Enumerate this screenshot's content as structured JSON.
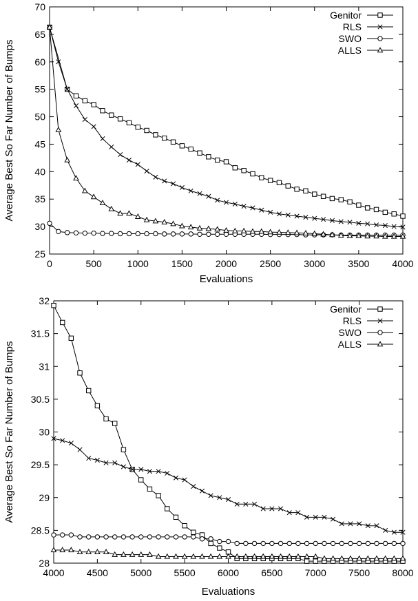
{
  "chart_data": [
    {
      "type": "line",
      "xlabel": "Evaluations",
      "ylabel": "Average Best So Far Number of Bumps",
      "xlim": [
        0,
        4000
      ],
      "ylim": [
        25,
        70
      ],
      "xticks": [
        0,
        500,
        1000,
        1500,
        2000,
        2500,
        3000,
        3500,
        4000
      ],
      "yticks": [
        25,
        30,
        35,
        40,
        45,
        50,
        55,
        60,
        65,
        70
      ],
      "xtick_labels": [
        "0",
        "500",
        "1000",
        "1500",
        "2000",
        "2500",
        "3000",
        "3500",
        "4000"
      ],
      "ytick_labels": [
        "25",
        "30",
        "35",
        "40",
        "45",
        "50",
        "55",
        "60",
        "65",
        "70"
      ],
      "grid": false,
      "legend": "top-right",
      "series": [
        {
          "name": "Genitor",
          "marker": "square",
          "x": [
            0,
            200,
            300,
            400,
            500,
            600,
            700,
            800,
            900,
            1000,
            1100,
            1200,
            1300,
            1400,
            1500,
            1600,
            1700,
            1800,
            1900,
            2000,
            2100,
            2200,
            2300,
            2400,
            2500,
            2600,
            2700,
            2800,
            2900,
            3000,
            3100,
            3200,
            3300,
            3400,
            3500,
            3600,
            3700,
            3800,
            3900,
            4000
          ],
          "y": [
            66.3,
            55,
            53.8,
            52.9,
            52.2,
            51.1,
            50.3,
            49.6,
            48.9,
            48.1,
            47.5,
            46.7,
            46.1,
            45.4,
            44.7,
            44.1,
            43.4,
            42.7,
            42.1,
            41.8,
            40.7,
            40.2,
            39.6,
            38.9,
            38.4,
            38.0,
            37.4,
            36.8,
            36.5,
            35.9,
            35.5,
            35.1,
            34.9,
            34.5,
            33.9,
            33.4,
            33.1,
            32.6,
            32.3,
            31.9
          ]
        },
        {
          "name": "RLS",
          "marker": "cross",
          "x": [
            0,
            100,
            200,
            300,
            400,
            500,
            600,
            700,
            800,
            900,
            1000,
            1100,
            1200,
            1300,
            1400,
            1500,
            1600,
            1700,
            1800,
            1900,
            2000,
            2100,
            2200,
            2300,
            2400,
            2500,
            2600,
            2700,
            2800,
            2900,
            3000,
            3100,
            3200,
            3300,
            3400,
            3500,
            3600,
            3700,
            3800,
            3900,
            4000
          ],
          "y": [
            66.3,
            60.0,
            55.0,
            52.0,
            49.5,
            48.2,
            46.0,
            44.5,
            43.1,
            42.1,
            41.3,
            40.1,
            39.0,
            38.3,
            37.8,
            37.1,
            36.5,
            36.0,
            35.5,
            34.8,
            34.4,
            34.1,
            33.7,
            33.4,
            33.0,
            32.6,
            32.3,
            32.1,
            31.9,
            31.7,
            31.5,
            31.3,
            31.1,
            30.9,
            30.8,
            30.6,
            30.5,
            30.3,
            30.2,
            30.0,
            29.9
          ]
        },
        {
          "name": "SWO",
          "marker": "circle",
          "x": [
            0,
            100,
            200,
            300,
            400,
            500,
            600,
            700,
            800,
            900,
            1000,
            1100,
            1200,
            1300,
            1400,
            1500,
            1600,
            1700,
            1800,
            1900,
            2000,
            2100,
            2200,
            2300,
            2400,
            2500,
            2600,
            2700,
            2800,
            2900,
            3000,
            3100,
            3200,
            3300,
            3400,
            3500,
            3600,
            3700,
            3800,
            3900,
            4000
          ],
          "y": [
            30.6,
            29.1,
            28.9,
            28.85,
            28.8,
            28.8,
            28.75,
            28.75,
            28.7,
            28.7,
            28.7,
            28.7,
            28.7,
            28.65,
            28.65,
            28.65,
            28.65,
            28.6,
            28.6,
            28.6,
            28.6,
            28.6,
            28.6,
            28.6,
            28.6,
            28.55,
            28.55,
            28.55,
            28.55,
            28.5,
            28.5,
            28.5,
            28.5,
            28.45,
            28.45,
            28.45,
            28.45,
            28.45,
            28.45,
            28.45,
            28.45
          ]
        },
        {
          "name": "ALLS",
          "marker": "triangle",
          "x": [
            0,
            100,
            200,
            300,
            400,
            500,
            600,
            700,
            800,
            900,
            1000,
            1100,
            1200,
            1300,
            1400,
            1500,
            1600,
            1700,
            1800,
            1900,
            2000,
            2100,
            2200,
            2300,
            2400,
            2500,
            2600,
            2700,
            2800,
            2900,
            3000,
            3100,
            3200,
            3300,
            3400,
            3500,
            3600,
            3700,
            3800,
            3900,
            4000
          ],
          "y": [
            66.3,
            47.6,
            42.1,
            38.8,
            36.5,
            35.4,
            34.3,
            33.2,
            32.4,
            32.4,
            31.8,
            31.2,
            31.0,
            30.8,
            30.5,
            30.1,
            29.9,
            29.7,
            29.6,
            29.5,
            29.3,
            29.2,
            29.2,
            29.1,
            29.1,
            29.0,
            28.95,
            28.9,
            28.85,
            28.8,
            28.7,
            28.6,
            28.5,
            28.4,
            28.3,
            28.3,
            28.25,
            28.25,
            28.2,
            28.2,
            28.2
          ]
        }
      ]
    },
    {
      "type": "line",
      "xlabel": "Evaluations",
      "ylabel": "Average Best So Far Number of Bumps",
      "xlim": [
        4000,
        8000
      ],
      "ylim": [
        28,
        32
      ],
      "xticks": [
        4000,
        4500,
        5000,
        5500,
        6000,
        6500,
        7000,
        7500,
        8000
      ],
      "yticks": [
        28,
        28.5,
        29,
        29.5,
        30,
        30.5,
        31,
        31.5,
        32
      ],
      "xtick_labels": [
        "4000",
        "4500",
        "5000",
        "5500",
        "6000",
        "6500",
        "7000",
        "7500",
        "8000"
      ],
      "ytick_labels": [
        "28",
        "28.5",
        "29",
        "29.5",
        "30",
        "30.5",
        "31",
        "31.5",
        "32"
      ],
      "grid": false,
      "legend": "top-right",
      "series": [
        {
          "name": "Genitor",
          "marker": "square",
          "x": [
            4000,
            4100,
            4200,
            4300,
            4400,
            4500,
            4600,
            4700,
            4800,
            4900,
            5000,
            5100,
            5200,
            5300,
            5400,
            5500,
            5600,
            5700,
            5800,
            5900,
            6000,
            6100,
            6200,
            6300,
            6400,
            6500,
            6600,
            6700,
            6800,
            6900,
            7000,
            7100,
            7200,
            7300,
            7400,
            7500,
            7600,
            7700,
            7800,
            7900,
            8000
          ],
          "y": [
            31.93,
            31.67,
            31.43,
            30.9,
            30.63,
            30.4,
            30.2,
            30.13,
            29.73,
            29.43,
            29.27,
            29.13,
            29.03,
            28.83,
            28.7,
            28.57,
            28.47,
            28.43,
            28.3,
            28.23,
            28.17,
            28.07,
            28.07,
            28.07,
            28.07,
            28.07,
            28.07,
            28.07,
            28.07,
            28.03,
            28.03,
            28.03,
            28.03,
            28.03,
            28.03,
            28.03,
            28.03,
            28.03,
            28.03,
            28.03,
            28.03
          ]
        },
        {
          "name": "RLS",
          "marker": "cross",
          "x": [
            4000,
            4100,
            4200,
            4300,
            4400,
            4500,
            4600,
            4700,
            4800,
            4900,
            5000,
            5100,
            5200,
            5300,
            5400,
            5500,
            5600,
            5700,
            5800,
            5900,
            6000,
            6100,
            6200,
            6300,
            6400,
            6500,
            6600,
            6700,
            6800,
            6900,
            7000,
            7100,
            7200,
            7300,
            7400,
            7500,
            7600,
            7700,
            7800,
            7900,
            8000
          ],
          "y": [
            29.9,
            29.87,
            29.83,
            29.73,
            29.6,
            29.57,
            29.53,
            29.53,
            29.47,
            29.43,
            29.43,
            29.4,
            29.4,
            29.37,
            29.3,
            29.27,
            29.17,
            29.1,
            29.03,
            29.0,
            28.97,
            28.9,
            28.9,
            28.9,
            28.83,
            28.83,
            28.83,
            28.77,
            28.77,
            28.7,
            28.7,
            28.7,
            28.67,
            28.6,
            28.6,
            28.6,
            28.57,
            28.57,
            28.5,
            28.47,
            28.47
          ]
        },
        {
          "name": "SWO",
          "marker": "circle",
          "x": [
            4000,
            4100,
            4200,
            4300,
            4400,
            4500,
            4600,
            4700,
            4800,
            4900,
            5000,
            5100,
            5200,
            5300,
            5400,
            5500,
            5600,
            5700,
            5800,
            5900,
            6000,
            6100,
            6200,
            6300,
            6400,
            6500,
            6600,
            6700,
            6800,
            6900,
            7000,
            7100,
            7200,
            7300,
            7400,
            7500,
            7600,
            7700,
            7800,
            7900,
            8000
          ],
          "y": [
            28.43,
            28.43,
            28.43,
            28.4,
            28.4,
            28.4,
            28.4,
            28.4,
            28.4,
            28.4,
            28.4,
            28.4,
            28.4,
            28.4,
            28.4,
            28.4,
            28.4,
            28.37,
            28.37,
            28.33,
            28.33,
            28.3,
            28.3,
            28.3,
            28.3,
            28.3,
            28.3,
            28.3,
            28.3,
            28.3,
            28.3,
            28.3,
            28.3,
            28.3,
            28.3,
            28.3,
            28.3,
            28.3,
            28.3,
            28.3,
            28.3
          ]
        },
        {
          "name": "ALLS",
          "marker": "triangle",
          "x": [
            4000,
            4100,
            4200,
            4300,
            4400,
            4500,
            4600,
            4700,
            4800,
            4900,
            5000,
            5100,
            5200,
            5300,
            5400,
            5500,
            5600,
            5700,
            5800,
            5900,
            6000,
            6100,
            6200,
            6300,
            6400,
            6500,
            6600,
            6700,
            6800,
            6900,
            7000,
            7100,
            7200,
            7300,
            7400,
            7500,
            7600,
            7700,
            7800,
            7900,
            8000
          ],
          "y": [
            28.2,
            28.2,
            28.2,
            28.17,
            28.17,
            28.17,
            28.17,
            28.13,
            28.13,
            28.13,
            28.13,
            28.13,
            28.1,
            28.1,
            28.1,
            28.1,
            28.1,
            28.1,
            28.1,
            28.1,
            28.1,
            28.1,
            28.1,
            28.1,
            28.1,
            28.1,
            28.1,
            28.1,
            28.1,
            28.1,
            28.1,
            28.07,
            28.07,
            28.07,
            28.07,
            28.07,
            28.07,
            28.07,
            28.07,
            28.07,
            28.07
          ]
        }
      ]
    }
  ]
}
